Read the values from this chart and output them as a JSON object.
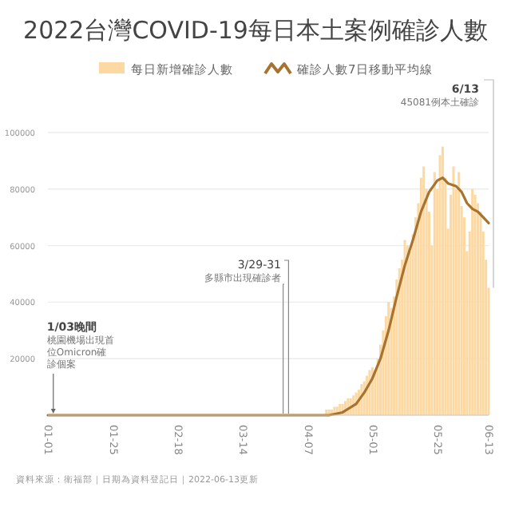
{
  "chart_data": {
    "type": "bar",
    "title": "2022台灣COVID-19每日本土案例確診人數",
    "legend": "top",
    "grid": "y",
    "xlim": [
      "2022-01-01",
      "2022-06-13"
    ],
    "xticks": [
      {
        "value": "2022-01-01",
        "label": "01-01"
      },
      {
        "value": "2022-01-25",
        "label": "01-25"
      },
      {
        "value": "2022-02-18",
        "label": "02-18"
      },
      {
        "value": "2022-03-14",
        "label": "03-14"
      },
      {
        "value": "2022-04-07",
        "label": "04-07"
      },
      {
        "value": "2022-05-01",
        "label": "05-01"
      },
      {
        "value": "2022-05-25",
        "label": "05-25"
      },
      {
        "value": "2022-06-13",
        "label": "06-13"
      }
    ],
    "ylim": [
      0,
      100000
    ],
    "yticks": [
      {
        "value": 0,
        "label": null
      },
      20000,
      40000,
      60000,
      80000,
      100000
    ],
    "series": [
      {
        "name": "每日新增確診人數",
        "color": "#fcd9a3",
        "x": [
          "2022-01-01",
          "2022-01-02",
          "2022-01-03",
          "2022-01-04",
          "2022-01-05",
          "2022-01-06",
          "2022-01-07",
          "2022-01-08",
          "2022-01-09",
          "2022-01-10",
          "2022-01-11",
          "2022-01-12",
          "2022-01-13",
          "2022-01-14",
          "2022-01-15",
          "2022-01-16",
          "2022-01-17",
          "2022-01-18",
          "2022-01-19",
          "2022-01-20",
          "2022-01-21",
          "2022-01-22",
          "2022-01-23",
          "2022-01-24",
          "2022-01-25",
          "2022-01-26",
          "2022-01-27",
          "2022-01-28",
          "2022-01-29",
          "2022-01-30",
          "2022-01-31",
          "2022-02-01",
          "2022-02-02",
          "2022-02-03",
          "2022-02-04",
          "2022-02-05",
          "2022-02-06",
          "2022-02-07",
          "2022-02-08",
          "2022-02-09",
          "2022-02-10",
          "2022-02-11",
          "2022-02-12",
          "2022-02-13",
          "2022-02-14",
          "2022-02-15",
          "2022-02-16",
          "2022-02-17",
          "2022-02-18",
          "2022-02-19",
          "2022-02-20",
          "2022-02-21",
          "2022-02-22",
          "2022-02-23",
          "2022-02-24",
          "2022-02-25",
          "2022-02-26",
          "2022-02-27",
          "2022-02-28",
          "2022-03-01",
          "2022-03-02",
          "2022-03-03",
          "2022-03-04",
          "2022-03-05",
          "2022-03-06",
          "2022-03-07",
          "2022-03-08",
          "2022-03-09",
          "2022-03-10",
          "2022-03-11",
          "2022-03-12",
          "2022-03-13",
          "2022-03-14",
          "2022-03-15",
          "2022-03-16",
          "2022-03-17",
          "2022-03-18",
          "2022-03-19",
          "2022-03-20",
          "2022-03-21",
          "2022-03-22",
          "2022-03-23",
          "2022-03-24",
          "2022-03-25",
          "2022-03-26",
          "2022-03-27",
          "2022-03-28",
          "2022-03-29",
          "2022-03-30",
          "2022-03-31",
          "2022-04-01",
          "2022-04-02",
          "2022-04-03",
          "2022-04-04",
          "2022-04-05",
          "2022-04-06",
          "2022-04-07",
          "2022-04-08",
          "2022-04-09",
          "2022-04-10",
          "2022-04-11",
          "2022-04-12",
          "2022-04-13",
          "2022-04-14",
          "2022-04-15",
          "2022-04-16",
          "2022-04-17",
          "2022-04-18",
          "2022-04-19",
          "2022-04-20",
          "2022-04-21",
          "2022-04-22",
          "2022-04-23",
          "2022-04-24",
          "2022-04-25",
          "2022-04-26",
          "2022-04-27",
          "2022-04-28",
          "2022-04-29",
          "2022-04-30",
          "2022-05-01",
          "2022-05-02",
          "2022-05-03",
          "2022-05-04",
          "2022-05-05",
          "2022-05-06",
          "2022-05-07",
          "2022-05-08",
          "2022-05-09",
          "2022-05-10",
          "2022-05-11",
          "2022-05-12",
          "2022-05-13",
          "2022-05-14",
          "2022-05-15",
          "2022-05-16",
          "2022-05-17",
          "2022-05-18",
          "2022-05-19",
          "2022-05-20",
          "2022-05-21",
          "2022-05-22",
          "2022-05-23",
          "2022-05-24",
          "2022-05-25",
          "2022-05-26",
          "2022-05-27",
          "2022-05-28",
          "2022-05-29",
          "2022-05-30",
          "2022-05-31",
          "2022-06-01",
          "2022-06-02",
          "2022-06-03",
          "2022-06-04",
          "2022-06-05",
          "2022-06-06",
          "2022-06-07",
          "2022-06-08",
          "2022-06-09",
          "2022-06-10",
          "2022-06-11",
          "2022-06-12",
          "2022-06-13"
        ],
        "values": [
          0,
          0,
          0,
          0,
          0,
          0,
          0,
          0,
          0,
          0,
          0,
          0,
          0,
          0,
          0,
          0,
          0,
          0,
          0,
          0,
          0,
          0,
          0,
          0,
          0,
          0,
          0,
          0,
          0,
          0,
          0,
          0,
          0,
          0,
          0,
          0,
          0,
          0,
          0,
          0,
          0,
          0,
          0,
          0,
          0,
          0,
          0,
          0,
          0,
          0,
          0,
          0,
          0,
          0,
          0,
          0,
          0,
          0,
          0,
          0,
          0,
          0,
          0,
          0,
          0,
          0,
          0,
          0,
          0,
          0,
          0,
          0,
          0,
          0,
          0,
          0,
          0,
          0,
          0,
          0,
          0,
          0,
          0,
          0,
          0,
          0,
          0,
          0,
          0,
          0,
          0,
          0,
          0,
          0,
          0,
          0,
          0,
          0,
          0,
          0,
          0,
          0,
          0,
          2000,
          2000,
          2000,
          3000,
          3000,
          4000,
          4000,
          5000,
          6000,
          6000,
          7000,
          8000,
          9000,
          11000,
          12000,
          14000,
          16000,
          17000,
          16000,
          20000,
          25000,
          30000,
          35000,
          40000,
          38000,
          42000,
          48000,
          52000,
          55000,
          62000,
          60000,
          58000,
          64000,
          70000,
          75000,
          84000,
          88000,
          80000,
          72000,
          60000,
          86000,
          80000,
          92000,
          95000,
          84000,
          66000,
          78000,
          88000,
          80000,
          86000,
          74000,
          70000,
          58000,
          65000,
          80000,
          78000,
          75000,
          72000,
          65000,
          55000,
          45081
        ]
      },
      {
        "name": "確診人數7日移動平均線",
        "type": "line",
        "color": "#a8732e",
        "x": [
          "2022-01-01",
          "2022-02-01",
          "2022-03-01",
          "2022-04-01",
          "2022-04-10",
          "2022-04-15",
          "2022-04-20",
          "2022-04-25",
          "2022-04-28",
          "2022-05-01",
          "2022-05-04",
          "2022-05-07",
          "2022-05-10",
          "2022-05-13",
          "2022-05-16",
          "2022-05-19",
          "2022-05-22",
          "2022-05-25",
          "2022-05-27",
          "2022-05-29",
          "2022-06-01",
          "2022-06-03",
          "2022-06-05",
          "2022-06-07",
          "2022-06-09",
          "2022-06-11",
          "2022-06-13"
        ],
        "values": [
          0,
          0,
          0,
          0,
          0,
          0,
          1000,
          4000,
          8000,
          13000,
          20000,
          30000,
          42000,
          53000,
          62000,
          72000,
          79000,
          83000,
          84000,
          82000,
          81000,
          79000,
          75000,
          73000,
          72000,
          70000,
          68000
        ]
      }
    ],
    "annotations": [
      "1/03晚間",
      {
        "text": "桃園機場出現首位Omicron確診個案",
        "x": "2022-01-03",
        "y": 0
      },
      {
        "text": "3/29-31",
        "x": "2022-03-30",
        "y": 0
      },
      "多縣市出現確診者",
      {
        "text": "6/13",
        "x": "2022-06-13",
        "y": 45081
      },
      "45081例本土確診",
      "資料來源：衛福部｜日期為資料登記日｜2022-06-13更新"
    ]
  }
}
